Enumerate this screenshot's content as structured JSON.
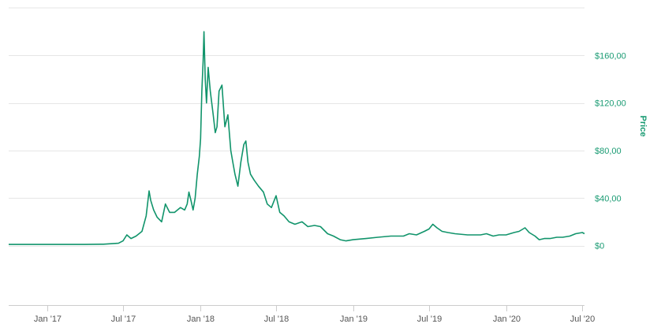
{
  "chart_data": {
    "type": "line",
    "title": "",
    "xlabel": "",
    "ylabel": "Price",
    "ylim": [
      -50,
      200
    ],
    "y_ticks": [
      0,
      40,
      80,
      120,
      160
    ],
    "y_tick_labels": [
      "$0",
      "$40,00",
      "$80,00",
      "$120,00",
      "$160,00"
    ],
    "x_ticks": [
      "2017-01-01",
      "2017-07-01",
      "2018-01-01",
      "2018-07-01",
      "2019-01-01",
      "2019-07-01",
      "2020-01-01",
      "2020-07-01"
    ],
    "x_tick_labels": [
      "Jan '17",
      "Jul '17",
      "Jan '18",
      "Jul '18",
      "Jan '19",
      "Jul '19",
      "Jan '20",
      "Jul '20"
    ],
    "xlim": [
      "2016-10-01",
      "2020-07-06"
    ],
    "grid": true,
    "legend": "none",
    "y_axis_side": "right",
    "color": "#11946b",
    "series": [
      {
        "x": [
          "2016-10-01",
          "2016-12-01",
          "2017-02-01",
          "2017-04-01",
          "2017-05-15",
          "2017-06-20",
          "2017-07-01",
          "2017-07-10",
          "2017-07-20",
          "2017-08-01",
          "2017-08-15",
          "2017-08-25",
          "2017-09-01",
          "2017-09-05",
          "2017-09-12",
          "2017-09-20",
          "2017-10-01",
          "2017-10-10",
          "2017-10-20",
          "2017-11-01",
          "2017-11-15",
          "2017-11-25",
          "2017-12-01",
          "2017-12-05",
          "2017-12-10",
          "2017-12-15",
          "2017-12-20",
          "2017-12-25",
          "2017-12-30",
          "2018-01-02",
          "2018-01-05",
          "2018-01-08",
          "2018-01-10",
          "2018-01-13",
          "2018-01-16",
          "2018-01-20",
          "2018-01-25",
          "2018-02-01",
          "2018-02-06",
          "2018-02-10",
          "2018-02-15",
          "2018-02-22",
          "2018-03-01",
          "2018-03-08",
          "2018-03-15",
          "2018-03-20",
          "2018-03-25",
          "2018-04-01",
          "2018-04-08",
          "2018-04-15",
          "2018-04-20",
          "2018-04-25",
          "2018-05-01",
          "2018-05-10",
          "2018-05-20",
          "2018-06-01",
          "2018-06-10",
          "2018-06-20",
          "2018-07-01",
          "2018-07-10",
          "2018-07-20",
          "2018-08-01",
          "2018-08-15",
          "2018-09-01",
          "2018-09-15",
          "2018-10-01",
          "2018-10-15",
          "2018-11-01",
          "2018-11-15",
          "2018-12-01",
          "2018-12-15",
          "2019-01-01",
          "2019-02-01",
          "2019-03-01",
          "2019-04-01",
          "2019-05-01",
          "2019-05-15",
          "2019-06-01",
          "2019-06-20",
          "2019-07-01",
          "2019-07-10",
          "2019-07-20",
          "2019-08-01",
          "2019-08-15",
          "2019-09-01",
          "2019-10-01",
          "2019-11-01",
          "2019-11-15",
          "2019-12-01",
          "2019-12-15",
          "2020-01-01",
          "2020-01-20",
          "2020-02-01",
          "2020-02-15",
          "2020-02-25",
          "2020-03-10",
          "2020-03-20",
          "2020-04-01",
          "2020-04-15",
          "2020-05-01",
          "2020-05-15",
          "2020-06-01",
          "2020-06-15",
          "2020-07-01",
          "2020-07-06"
        ],
        "y": [
          1,
          1,
          1,
          1,
          1.2,
          2,
          4,
          9,
          6,
          8,
          12,
          25,
          46,
          38,
          30,
          24,
          20,
          35,
          28,
          28,
          32,
          30,
          35,
          45,
          38,
          30,
          40,
          60,
          75,
          90,
          130,
          155,
          180,
          140,
          120,
          150,
          130,
          110,
          95,
          100,
          130,
          135,
          100,
          110,
          80,
          70,
          60,
          50,
          70,
          85,
          88,
          70,
          60,
          55,
          50,
          45,
          35,
          32,
          42,
          28,
          25,
          20,
          18,
          20,
          16,
          17,
          16,
          10,
          8,
          5,
          4,
          5,
          6,
          7,
          8,
          8,
          10,
          9,
          12,
          14,
          18,
          15,
          12,
          11,
          10,
          9,
          9,
          10,
          8,
          9,
          9,
          11,
          12,
          15,
          11,
          8,
          5,
          6,
          6,
          7,
          7,
          8,
          10,
          11,
          10
        ]
      }
    ]
  }
}
